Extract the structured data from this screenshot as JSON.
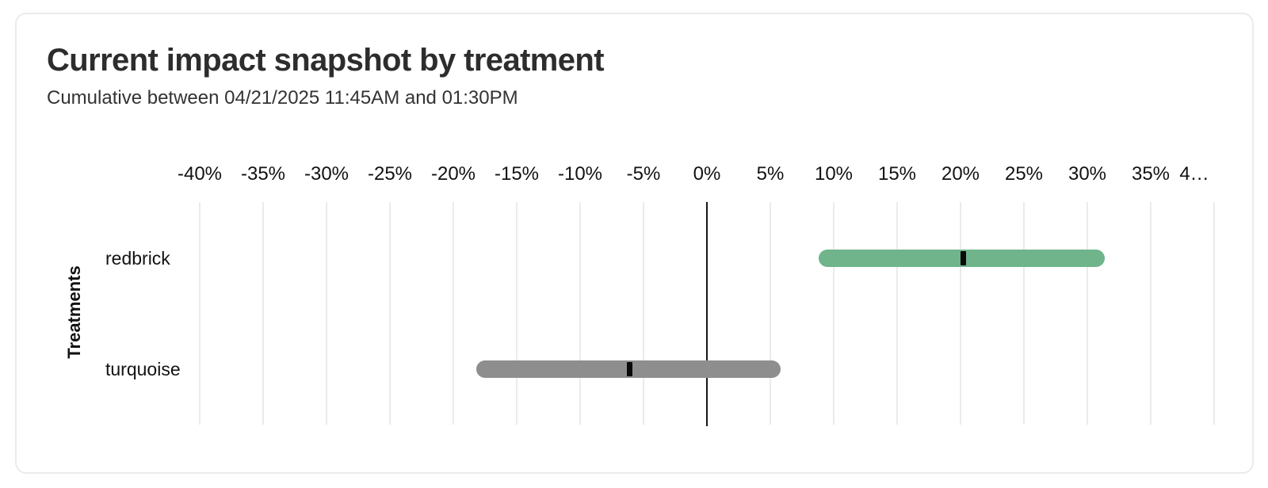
{
  "header": {
    "title": "Current impact snapshot by treatment",
    "subtitle": "Cumulative between 04/21/2025 11:45AM and 01:30PM"
  },
  "chart_data": {
    "type": "interval_bar",
    "orientation": "horizontal",
    "title": "Current impact snapshot by treatment",
    "subtitle": "Cumulative between 04/21/2025 11:45AM and 01:30PM",
    "xlabel": "",
    "ylabel": "Treatments",
    "x_unit": "percent",
    "xlim": [
      -40,
      41
    ],
    "grid": true,
    "zero_line": true,
    "legend": "none",
    "x_ticks": [
      {
        "value": -40,
        "label": "-40%"
      },
      {
        "value": -35,
        "label": "-35%"
      },
      {
        "value": -30,
        "label": "-30%"
      },
      {
        "value": -25,
        "label": "-25%"
      },
      {
        "value": -20,
        "label": "-20%"
      },
      {
        "value": -15,
        "label": "-15%"
      },
      {
        "value": -10,
        "label": "-10%"
      },
      {
        "value": -5,
        "label": "-5%"
      },
      {
        "value": 0,
        "label": "0%"
      },
      {
        "value": 5,
        "label": "5%"
      },
      {
        "value": 10,
        "label": "10%"
      },
      {
        "value": 15,
        "label": "15%"
      },
      {
        "value": 20,
        "label": "20%"
      },
      {
        "value": 25,
        "label": "25%"
      },
      {
        "value": 30,
        "label": "30%"
      },
      {
        "value": 35,
        "label": "35%"
      },
      {
        "value": 40,
        "label": "4…"
      }
    ],
    "categories": [
      "redbrick",
      "turquoise"
    ],
    "series": [
      {
        "name": "redbrick",
        "low": 8.8,
        "mid": 20.2,
        "high": 31.4,
        "bar_color": "#6FB48A"
      },
      {
        "name": "turquoise",
        "low": -18.2,
        "mid": -6.1,
        "high": 5.8,
        "bar_color": "#8E8E8E"
      }
    ],
    "marker_color": "#0A0A0A"
  },
  "colors": {
    "card_border": "#EBEBEB",
    "grid_line": "#EBEBEB",
    "zero_line": "#161616",
    "title_text": "#2D2D2D",
    "subtitle_text": "#333333",
    "axis_text": "#121212"
  }
}
